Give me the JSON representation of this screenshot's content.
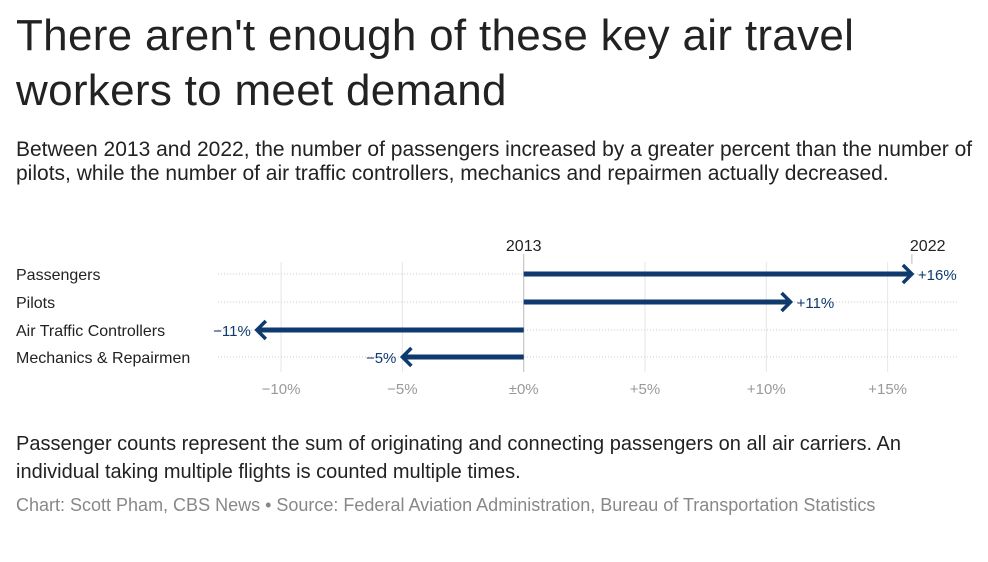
{
  "title": "There aren't enough of these key air travel workers to meet demand",
  "subtitle": "Between 2013 and 2022, the number of passengers increased by a greater percent than the number of pilots, while the number of air traffic controllers, mechanics and repairmen actually decreased.",
  "note": "Passenger counts represent the sum of originating and connecting passengers on all air carriers. An individual taking multiple flights is counted multiple times.",
  "source": "Chart: Scott Pham, CBS News • Source: Federal Aviation Administration, Bureau of Transportation Statistics",
  "chart_data": {
    "type": "arrow",
    "start_label": "2013",
    "end_label": "2022",
    "categories": [
      "Passengers",
      "Pilots",
      "Air Traffic Controllers",
      "Mechanics & Repairmen"
    ],
    "values": [
      16,
      11,
      -11,
      -5
    ],
    "value_labels": [
      "+16%",
      "+11%",
      "−11%",
      "−5%"
    ],
    "xlim": [
      -12.6,
      17.9
    ],
    "xticks": [
      -10,
      -5,
      0,
      5,
      10,
      15
    ],
    "xtick_labels": [
      "−10%",
      "−5%",
      "±0%",
      "+5%",
      "+10%",
      "+15%"
    ],
    "color": "#0e3a6e"
  }
}
